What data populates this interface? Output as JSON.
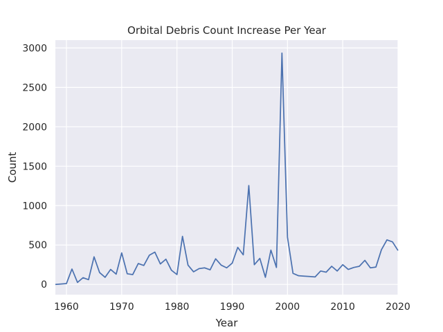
{
  "chart_data": {
    "type": "line",
    "title": "Orbital Debris Count Increase Per Year",
    "xlabel": "Year",
    "ylabel": "Count",
    "xlim": [
      1958,
      2020
    ],
    "ylim": [
      -130,
      3100
    ],
    "xticks": [
      1960,
      1970,
      1980,
      1990,
      2000,
      2010,
      2020
    ],
    "yticks": [
      0,
      500,
      1000,
      1500,
      2000,
      2500,
      3000
    ],
    "grid": true,
    "colors": {
      "line": "#4c72b0",
      "plot_bg": "#eaeaf2",
      "grid": "#ffffff"
    },
    "series": [
      {
        "name": "",
        "x": [
          1958,
          1959,
          1960,
          1961,
          1962,
          1963,
          1964,
          1965,
          1966,
          1967,
          1968,
          1969,
          1970,
          1971,
          1972,
          1973,
          1974,
          1975,
          1976,
          1977,
          1978,
          1979,
          1980,
          1981,
          1982,
          1983,
          1984,
          1985,
          1986,
          1987,
          1988,
          1989,
          1990,
          1991,
          1992,
          1993,
          1994,
          1995,
          1996,
          1997,
          1998,
          1999,
          2000,
          2001,
          2002,
          2003,
          2004,
          2005,
          2006,
          2007,
          2008,
          2009,
          2010,
          2011,
          2012,
          2013,
          2014,
          2015,
          2016,
          2017,
          2018,
          2019,
          2020
        ],
        "y": [
          0,
          5,
          10,
          195,
          25,
          85,
          60,
          350,
          150,
          90,
          190,
          130,
          400,
          135,
          125,
          265,
          240,
          370,
          410,
          260,
          320,
          180,
          125,
          610,
          245,
          160,
          200,
          210,
          185,
          325,
          245,
          210,
          270,
          470,
          375,
          1255,
          250,
          330,
          90,
          435,
          215,
          2935,
          600,
          140,
          110,
          105,
          100,
          95,
          170,
          155,
          230,
          170,
          250,
          190,
          215,
          230,
          305,
          210,
          220,
          440,
          565,
          540,
          430
        ]
      }
    ]
  }
}
